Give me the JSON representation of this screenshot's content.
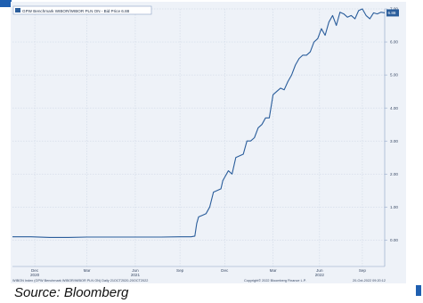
{
  "caption": "Source: Bloomberg",
  "chart_data": {
    "type": "line",
    "legend_label": "GPW Benchmark WIBOR/WIBOR PLN ON - Bid Price 6.88",
    "last_value_badge": "6.88",
    "footer_left": "WIBON Index (GPW Benchmark WIBOR/WIBOR PLN ON) Daily 21OCT2020-20OCT2022",
    "footer_mid": "Copyright© 2022 Bloomberg Finance L.P.",
    "footer_right": "20-Oct-2022 09:20:12",
    "ylim": [
      -0.8,
      7.0
    ],
    "y_ticks": [
      0.0,
      1.0,
      2.0,
      3.0,
      4.0,
      5.0,
      6.0,
      7.0
    ],
    "y_tick_labels": [
      "0.00",
      "1.00",
      "2.00",
      "3.00",
      "4.00",
      "5.00",
      "6.00",
      "7.00"
    ],
    "x_ticks": [
      {
        "t": 0.06,
        "label": "Dec"
      },
      {
        "t": 0.2,
        "label": "Mar"
      },
      {
        "t": 0.33,
        "label": "Jun"
      },
      {
        "t": 0.45,
        "label": "Sep"
      },
      {
        "t": 0.57,
        "label": "Dec"
      },
      {
        "t": 0.7,
        "label": "Mar"
      },
      {
        "t": 0.825,
        "label": "Jun"
      },
      {
        "t": 0.94,
        "label": "Sep"
      }
    ],
    "year_labels": [
      {
        "t": 0.06,
        "label": "2020"
      },
      {
        "t": 0.33,
        "label": "2021"
      },
      {
        "t": 0.825,
        "label": "2022"
      }
    ],
    "colors": {
      "line": "#2a5d9b",
      "background": "#eef2f8",
      "badge": "#2a5d9b",
      "grid": "#c9d3e2"
    },
    "series": [
      {
        "x": [
          0.0,
          0.05,
          0.1,
          0.15,
          0.2,
          0.25,
          0.3,
          0.35,
          0.4,
          0.45,
          0.47,
          0.48,
          0.49,
          0.495,
          0.5,
          0.51,
          0.52,
          0.53,
          0.54,
          0.55,
          0.56,
          0.565,
          0.57,
          0.58,
          0.59,
          0.6,
          0.61,
          0.62,
          0.63,
          0.64,
          0.65,
          0.66,
          0.67,
          0.68,
          0.69,
          0.7,
          0.71,
          0.72,
          0.73,
          0.74,
          0.75,
          0.76,
          0.77,
          0.78,
          0.79,
          0.8,
          0.81,
          0.82,
          0.83,
          0.84,
          0.85,
          0.86,
          0.87,
          0.88,
          0.89,
          0.9,
          0.91,
          0.92,
          0.93,
          0.94,
          0.95,
          0.96,
          0.97,
          0.98,
          0.99,
          1.0
        ],
        "y": [
          0.1,
          0.1,
          0.08,
          0.08,
          0.09,
          0.09,
          0.09,
          0.09,
          0.09,
          0.1,
          0.1,
          0.1,
          0.12,
          0.5,
          0.7,
          0.75,
          0.8,
          1.0,
          1.45,
          1.5,
          1.55,
          1.8,
          1.9,
          2.1,
          2.0,
          2.5,
          2.55,
          2.6,
          3.0,
          3.0,
          3.1,
          3.4,
          3.5,
          3.7,
          3.7,
          4.4,
          4.5,
          4.6,
          4.55,
          4.8,
          5.0,
          5.3,
          5.5,
          5.6,
          5.6,
          5.7,
          6.0,
          6.1,
          6.4,
          6.2,
          6.6,
          6.8,
          6.5,
          6.9,
          6.85,
          6.75,
          6.8,
          6.7,
          6.95,
          7.0,
          6.8,
          6.7,
          6.88,
          6.85,
          6.9,
          6.88
        ]
      }
    ]
  }
}
